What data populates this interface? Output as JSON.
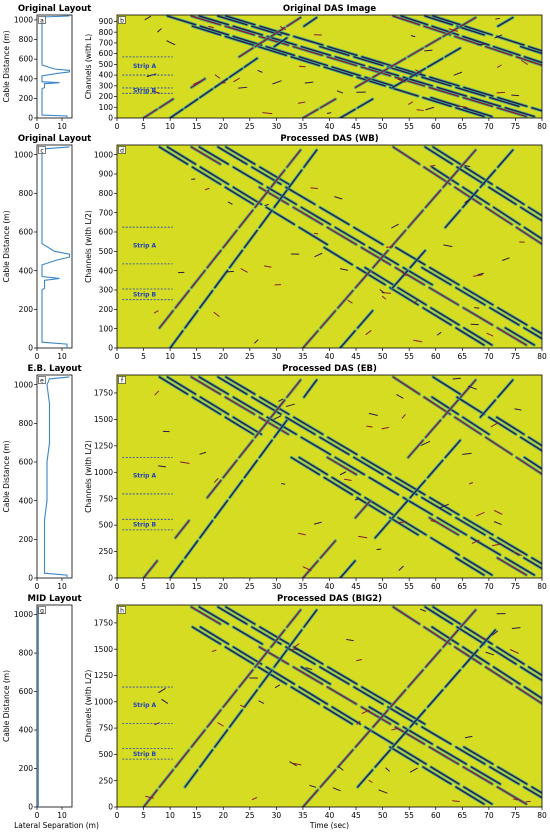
{
  "layout_panels": [
    {
      "letter": "a",
      "title": "Original Layout",
      "ylabel": "Cable Distance (m)",
      "yticks": [
        0,
        200,
        400,
        600,
        800,
        1000
      ],
      "ylim": [
        0,
        1050
      ],
      "xticks": [
        0,
        10
      ],
      "xlim": [
        0,
        14
      ],
      "curve": [
        [
          12,
          0
        ],
        [
          12,
          20
        ],
        [
          2,
          30
        ],
        [
          2,
          300
        ],
        [
          3,
          310
        ],
        [
          3,
          350
        ],
        [
          9,
          360
        ],
        [
          2,
          370
        ],
        [
          2,
          430
        ],
        [
          8,
          455
        ],
        [
          13,
          470
        ],
        [
          13,
          485
        ],
        [
          7,
          500
        ],
        [
          2,
          540
        ],
        [
          2,
          1030
        ],
        [
          13,
          1040
        ]
      ]
    },
    {
      "letter": "c",
      "title": "Original Layout",
      "ylabel": "Cable Distance (m)",
      "yticks": [
        0,
        200,
        400,
        600,
        800,
        1000
      ],
      "ylim": [
        0,
        1050
      ],
      "xticks": [
        0,
        10
      ],
      "xlim": [
        0,
        14
      ],
      "curve": [
        [
          12,
          0
        ],
        [
          12,
          20
        ],
        [
          2,
          30
        ],
        [
          2,
          300
        ],
        [
          3,
          310
        ],
        [
          3,
          350
        ],
        [
          9,
          360
        ],
        [
          2,
          370
        ],
        [
          2,
          430
        ],
        [
          8,
          455
        ],
        [
          13,
          470
        ],
        [
          13,
          485
        ],
        [
          7,
          500
        ],
        [
          2,
          540
        ],
        [
          2,
          1030
        ],
        [
          13,
          1040
        ]
      ]
    },
    {
      "letter": "e",
      "title": "E.B. Layout",
      "ylabel": "Cable Distance (m)",
      "yticks": [
        0,
        200,
        400,
        600,
        800,
        1000
      ],
      "ylim": [
        0,
        1050
      ],
      "xticks": [
        0,
        10
      ],
      "xlim": [
        0,
        14
      ],
      "curve": [
        [
          12,
          0
        ],
        [
          12,
          15
        ],
        [
          3,
          25
        ],
        [
          3,
          300
        ],
        [
          4,
          400
        ],
        [
          4,
          600
        ],
        [
          5,
          700
        ],
        [
          5,
          900
        ],
        [
          4,
          1000
        ],
        [
          5,
          1030
        ],
        [
          13,
          1040
        ]
      ]
    },
    {
      "letter": "g",
      "title": "MID Layout",
      "ylabel": "Cable Distance (m)",
      "xlabel": "Lateral Separation (m)",
      "yticks": [
        0,
        200,
        400,
        600,
        800,
        1000
      ],
      "ylim": [
        0,
        1050
      ],
      "xticks": [
        0,
        10
      ],
      "xlim": [
        0,
        14
      ],
      "curve": [
        [
          0.5,
          0
        ],
        [
          0.5,
          1040
        ]
      ]
    }
  ],
  "das_panels": [
    {
      "letter": "b",
      "title": "Original DAS Image",
      "ylabel": "Channels (with L)",
      "yticks": [
        0,
        100,
        200,
        300,
        400,
        500,
        600,
        700,
        800,
        900
      ],
      "ylim": [
        0,
        960
      ],
      "strip_a": [
        570,
        400
      ],
      "strip_b": [
        280,
        230
      ]
    },
    {
      "letter": "d",
      "title": "Processed DAS (WB)",
      "ylabel": "Channels (with L/2)",
      "yticks": [
        0,
        100,
        200,
        300,
        400,
        500,
        600,
        700,
        800,
        900,
        1000
      ],
      "ylim": [
        0,
        1050
      ],
      "strip_a": [
        625,
        435
      ],
      "strip_b": [
        305,
        250
      ]
    },
    {
      "letter": "f",
      "title": "Processed DAS (EB)",
      "ylabel": "Channels (with L/2)",
      "yticks": [
        0,
        250,
        500,
        750,
        1000,
        1250,
        1500,
        1750
      ],
      "ylim": [
        0,
        1920
      ],
      "strip_a": [
        1140,
        795
      ],
      "strip_b": [
        555,
        455
      ]
    },
    {
      "letter": "h",
      "title": "Processed DAS (BIG2)",
      "ylabel": "Channels (with L/2)",
      "xlabel": "Time (sec)",
      "yticks": [
        0,
        250,
        500,
        750,
        1000,
        1250,
        1500,
        1750
      ],
      "ylim": [
        0,
        1920
      ],
      "strip_a": [
        1140,
        795
      ],
      "strip_b": [
        555,
        455
      ]
    }
  ],
  "chart_data": {
    "type": "heatmap",
    "xticks": [
      0,
      5,
      10,
      15,
      20,
      25,
      30,
      35,
      40,
      45,
      50,
      55,
      60,
      65,
      70,
      75,
      80
    ],
    "xlim": [
      0,
      80
    ],
    "strip_labels": [
      "Strip A",
      "Strip B"
    ],
    "colors": {
      "background": "#d5dc22",
      "trace_dark": "#2a1a4a",
      "trace_halo": "#2ea89a",
      "trace_red": "#8a1a2a",
      "layout_line": "#3a86c8",
      "strip_line": "#1f3fbf"
    },
    "traces_descending": [
      [
        8,
        70
      ],
      [
        14,
        78
      ],
      [
        19,
        83
      ],
      [
        52,
        110
      ],
      [
        58,
        118
      ]
    ],
    "traces_ascending": [
      [
        5,
        35
      ],
      [
        10,
        38
      ],
      [
        35,
        68
      ],
      [
        42,
        75
      ]
    ]
  }
}
